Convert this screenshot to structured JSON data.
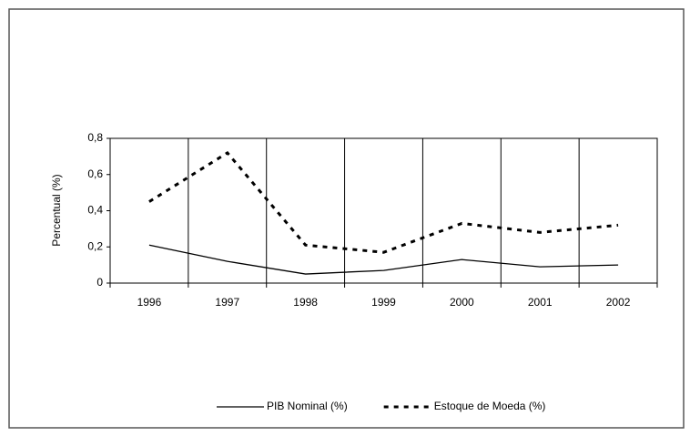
{
  "chart_data": {
    "type": "line",
    "y_label": "Percentual (%)",
    "categories": [
      "1996",
      "1997",
      "1998",
      "1999",
      "2000",
      "2001",
      "2002"
    ],
    "series": [
      {
        "name": "PIB Nominal (%)",
        "color": "#000000",
        "line_style": "solid",
        "values": [
          0.21,
          0.12,
          0.05,
          0.07,
          0.13,
          0.09,
          0.1
        ]
      },
      {
        "name": "Estoque de Moeda (%)",
        "color": "#000000",
        "line_style": "dashed",
        "values": [
          0.45,
          0.72,
          0.21,
          0.17,
          0.33,
          0.28,
          0.32
        ]
      }
    ],
    "ylim": [
      0,
      0.8
    ],
    "yticks": [
      0,
      {
        "value": 0.2,
        "label": "0,2"
      },
      {
        "value": 0.4,
        "label": "0,4"
      },
      {
        "value": 0.6,
        "label": "0,6"
      },
      {
        "value": 0.8,
        "label": "0,8"
      }
    ],
    "category_separators": true,
    "legend": "bottom"
  }
}
